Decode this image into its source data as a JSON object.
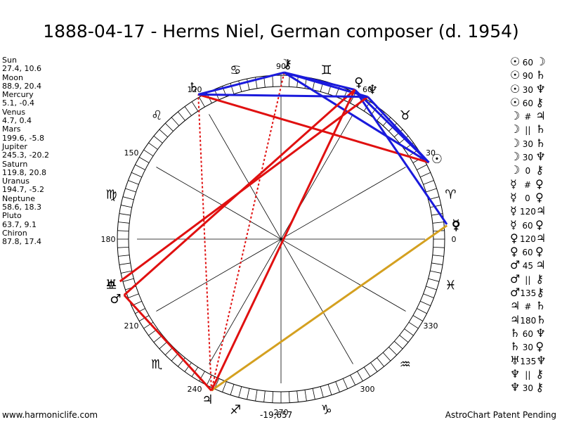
{
  "title": "1888-04-17 - Herms Niel, German composer (d. 1954)",
  "positions": [
    {
      "name": "Sun",
      "value": "27.4, 10.6"
    },
    {
      "name": "Moon",
      "value": "88.9, 20.4"
    },
    {
      "name": "Mercury",
      "value": "5.1, -0.4"
    },
    {
      "name": "Venus",
      "value": "4.7, 0.4"
    },
    {
      "name": "Mars",
      "value": "199.6, -5.8"
    },
    {
      "name": "Jupiter",
      "value": "245.3, -20.2"
    },
    {
      "name": "Saturn",
      "value": "119.8, 20.8"
    },
    {
      "name": "Uranus",
      "value": "194.7, -5.2"
    },
    {
      "name": "Neptune",
      "value": "58.6, 18.3"
    },
    {
      "name": "Pluto",
      "value": "63.7, 9.1"
    },
    {
      "name": "Chiron",
      "value": "87.8, 17.4"
    }
  ],
  "aspects": [
    {
      "p1": "☉",
      "asp": "60",
      "p2": "☽"
    },
    {
      "p1": "☉",
      "asp": "90",
      "p2": "♄"
    },
    {
      "p1": "☉",
      "asp": "30",
      "p2": "♆"
    },
    {
      "p1": "☉",
      "asp": "60",
      "p2": "⚷"
    },
    {
      "p1": "☽",
      "asp": "#",
      "p2": "♃"
    },
    {
      "p1": "☽",
      "asp": "||",
      "p2": "♄"
    },
    {
      "p1": "☽",
      "asp": "30",
      "p2": "♄"
    },
    {
      "p1": "☽",
      "asp": "30",
      "p2": "♆"
    },
    {
      "p1": "☽",
      "asp": "0",
      "p2": "⚷"
    },
    {
      "p1": "☿",
      "asp": "#",
      "p2": "♀"
    },
    {
      "p1": "☿",
      "asp": "0",
      "p2": "♀"
    },
    {
      "p1": "☿",
      "asp": "120",
      "p2": "♃"
    },
    {
      "p1": "☿",
      "asp": "60",
      "p2": "♀"
    },
    {
      "p1": "♀",
      "asp": "120",
      "p2": "♃"
    },
    {
      "p1": "♀",
      "asp": "60",
      "p2": "♀"
    },
    {
      "p1": "♂",
      "asp": "45",
      "p2": "♃"
    },
    {
      "p1": "♂",
      "asp": "||",
      "p2": "⚷"
    },
    {
      "p1": "♂",
      "asp": "135",
      "p2": "⚷"
    },
    {
      "p1": "♃",
      "asp": "#",
      "p2": "♄"
    },
    {
      "p1": "♃",
      "asp": "180",
      "p2": "♄"
    },
    {
      "p1": "♄",
      "asp": "60",
      "p2": "♆"
    },
    {
      "p1": "♄",
      "asp": "30",
      "p2": "♀"
    },
    {
      "p1": "♅",
      "asp": "135",
      "p2": "♆"
    },
    {
      "p1": "♆",
      "asp": "||",
      "p2": "⚷"
    },
    {
      "p1": "♆",
      "asp": "30",
      "p2": "⚷"
    }
  ],
  "wheel": {
    "degree_labels": [
      "0",
      "30",
      "60",
      "90",
      "120",
      "150",
      "180",
      "210",
      "240",
      "270",
      "300",
      "330"
    ],
    "signs": [
      "♈",
      "♉",
      "♊",
      "♋",
      "♌",
      "♍",
      "♎",
      "♏",
      "♐",
      "♑",
      "♒",
      "♓"
    ],
    "planets": [
      {
        "glyph": "☉",
        "lon": 27.4
      },
      {
        "glyph": "☽",
        "lon": 88.9
      },
      {
        "glyph": "☿",
        "lon": 5.1
      },
      {
        "glyph": "♀",
        "lon": 4.7
      },
      {
        "glyph": "♂",
        "lon": 199.6
      },
      {
        "glyph": "♃",
        "lon": 245.3
      },
      {
        "glyph": "♄",
        "lon": 119.8
      },
      {
        "glyph": "♅",
        "lon": 194.7
      },
      {
        "glyph": "♆",
        "lon": 58.6
      },
      {
        "glyph": "♀",
        "lon": 63.7
      },
      {
        "glyph": "⚷",
        "lon": 87.8
      }
    ],
    "aspect_lines": [
      {
        "a": 27.4,
        "b": 88.9,
        "color": "#1a1adc",
        "dashed": false
      },
      {
        "a": 27.4,
        "b": 119.8,
        "color": "#e01010",
        "dashed": false
      },
      {
        "a": 27.4,
        "b": 58.6,
        "color": "#1a1adc",
        "dashed": false
      },
      {
        "a": 27.4,
        "b": 63.7,
        "color": "#1a1adc",
        "dashed": false
      },
      {
        "a": 88.9,
        "b": 245.3,
        "color": "#e01010",
        "dashed": true
      },
      {
        "a": 88.9,
        "b": 119.8,
        "color": "#1a1adc",
        "dashed": false
      },
      {
        "a": 88.9,
        "b": 58.6,
        "color": "#1a1adc",
        "dashed": false
      },
      {
        "a": 88.9,
        "b": 63.7,
        "color": "#1a1adc",
        "dashed": false
      },
      {
        "a": 5.1,
        "b": 63.7,
        "color": "#1a1adc",
        "dashed": false
      },
      {
        "a": 4.7,
        "b": 245.3,
        "color": "#d4a020",
        "dashed": false
      },
      {
        "a": 199.6,
        "b": 63.7,
        "color": "#e01010",
        "dashed": false
      },
      {
        "a": 194.7,
        "b": 58.6,
        "color": "#e01010",
        "dashed": false
      },
      {
        "a": 245.3,
        "b": 119.8,
        "color": "#e01010",
        "dashed": true
      },
      {
        "a": 245.3,
        "b": 199.6,
        "color": "#e01010",
        "dashed": false
      },
      {
        "a": 245.3,
        "b": 63.7,
        "color": "#e01010",
        "dashed": false
      },
      {
        "a": 119.8,
        "b": 58.6,
        "color": "#1a1adc",
        "dashed": false
      }
    ]
  },
  "footer": {
    "left": "www.harmoniclife.com",
    "center": "-19,657",
    "right": "AstroChart Patent Pending"
  }
}
